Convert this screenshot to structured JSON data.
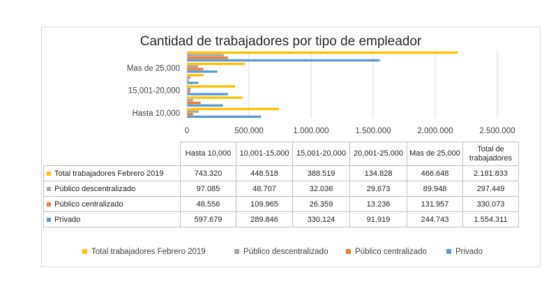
{
  "chart_data": {
    "type": "bar",
    "orientation": "horizontal",
    "title": "Cantidad de trabajadores por tipo de empleador",
    "categories": [
      "Hasta 10,000",
      "10,001-15,000",
      "15,001-20,000",
      "20,001-25,000",
      "Mas de 25,000",
      "Total de trabajadores"
    ],
    "axis_category_labels": [
      "Hasta 10,000",
      "",
      "15,001-20,000",
      "",
      "Mas de 25,000",
      ""
    ],
    "xlim": [
      0,
      2500000
    ],
    "xticks": [
      "0",
      "500.000",
      "1.000.000",
      "1.500.000",
      "2.000.000",
      "2.500.000"
    ],
    "grid": true,
    "legend_position": "bottom",
    "series": [
      {
        "name": "Total trabajadores Febrero 2019",
        "color": "#FFC000",
        "values": [
          743320,
          448518,
          388519,
          134828,
          466648,
          2181833
        ]
      },
      {
        "name": "Público descentralizado",
        "color": "#A5A5A5",
        "values": [
          97085,
          48707,
          32036,
          29673,
          89948,
          297449
        ]
      },
      {
        "name": "Público centralizado",
        "color": "#ED7D31",
        "values": [
          48556,
          109965,
          26359,
          13236,
          131957,
          330073
        ]
      },
      {
        "name": "Privado",
        "color": "#5B9BD5",
        "values": [
          597679,
          289846,
          330124,
          91919,
          244743,
          1554311
        ]
      }
    ]
  },
  "table": {
    "headers": [
      "Hasta 10,000",
      "10,001-15,000",
      "15,001-20,000",
      "20,001-25,000",
      "Mas de 25,000",
      "Total de trabajadores"
    ],
    "rows": [
      {
        "label": "Total trabajadores Febrero 2019",
        "color": "#FFC000",
        "cells": [
          "743.320",
          "448.518",
          "388.519",
          "134.828",
          "466.648",
          "2.181.833"
        ]
      },
      {
        "label": "Público descentralizado",
        "color": "#A5A5A5",
        "cells": [
          "97.085",
          "48.707",
          "32.036",
          "29.673",
          "89.948",
          "297.449"
        ]
      },
      {
        "label": "Público centralizado",
        "color": "#ED7D31",
        "cells": [
          "48.556",
          "109.965",
          "26.359",
          "13.236",
          "131.957",
          "330.073"
        ]
      },
      {
        "label": "Privado",
        "color": "#5B9BD5",
        "cells": [
          "597.679",
          "289.846",
          "330.124",
          "91.919",
          "244.743",
          "1.554.311"
        ]
      }
    ]
  },
  "legend": [
    {
      "label": "Total trabajadores Febrero 2019",
      "color": "#FFC000"
    },
    {
      "label": "Público descentralizado",
      "color": "#A5A5A5"
    },
    {
      "label": "Público centralizado",
      "color": "#ED7D31"
    },
    {
      "label": "Privado",
      "color": "#5B9BD5"
    }
  ]
}
